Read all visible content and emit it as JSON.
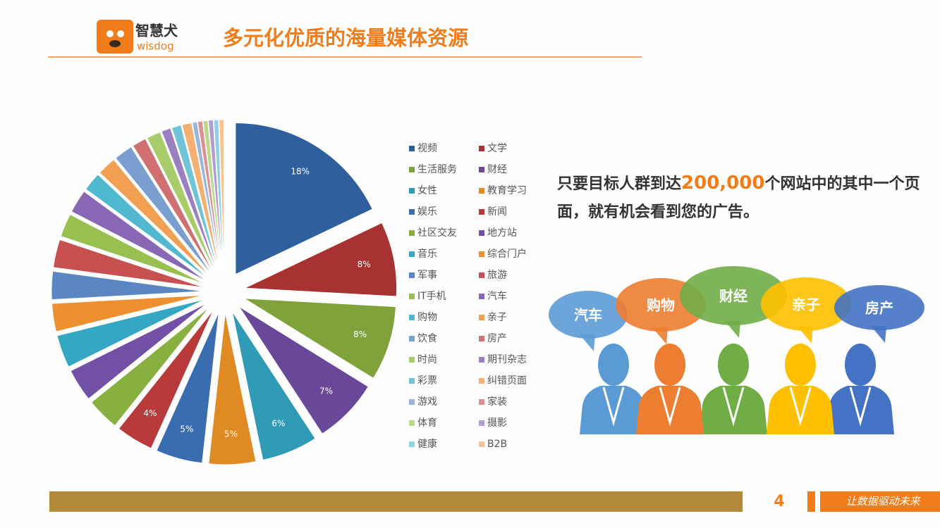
{
  "header": {
    "logo_cn": "智慧犬",
    "logo_en": "wisdog",
    "title": "多元化优质的海量媒体资源"
  },
  "chart_data": {
    "type": "pie",
    "categories": [
      "视频",
      "文学",
      "生活服务",
      "财经",
      "女性",
      "教育学习",
      "娱乐",
      "新闻",
      "社区交友",
      "地方站",
      "音乐",
      "综合门户",
      "军事",
      "旅游",
      "IT手机",
      "汽车",
      "购物",
      "亲子",
      "饮食",
      "房产",
      "时尚",
      "期刊杂志",
      "彩票",
      "纠错页面",
      "游戏",
      "家装",
      "体育",
      "摄影",
      "健康",
      "B2B"
    ],
    "values": [
      18,
      8,
      8,
      7,
      6,
      5,
      5,
      4,
      3.5,
      3.5,
      3.5,
      3,
      3,
      3,
      2.5,
      2.5,
      2,
      2,
      2,
      1.5,
      1.5,
      1,
      1,
      1,
      0.5,
      0.5,
      0.5,
      0.5,
      0.5,
      0.5
    ],
    "value_labels": [
      "18%",
      "8%",
      "8%",
      "7%",
      "6%",
      "5%",
      "5%",
      "4%",
      null,
      null,
      null,
      null,
      null,
      null,
      null,
      null,
      null,
      null,
      null,
      null,
      null,
      null,
      null,
      null,
      null,
      null,
      null,
      null,
      null,
      null
    ],
    "colors": [
      "#2f5f9e",
      "#a83232",
      "#7fa33a",
      "#69489a",
      "#2f9bb5",
      "#e08a24",
      "#3a6cb0",
      "#b83a3a",
      "#88b040",
      "#7250a5",
      "#34a8c2",
      "#ee9030",
      "#5a86c4",
      "#c85050",
      "#98c050",
      "#8868b5",
      "#50b8cf",
      "#f0a050",
      "#7a9ed0",
      "#d07070",
      "#a8cc6a",
      "#9a80c0",
      "#70c4d8",
      "#f4b070",
      "#9ab4dc",
      "#dc9090",
      "#bcd88a",
      "#b09cd0",
      "#90d0e0",
      "#f6c494"
    ],
    "legend": "right"
  },
  "text": {
    "before": "只要目标人群到达",
    "number": "200,000",
    "after": "个网站中的其中一个页面，就有机会看到您的广告。"
  },
  "illustration": {
    "labels": [
      "汽车",
      "购物",
      "财经",
      "亲子",
      "房产"
    ]
  },
  "footer": {
    "page": 4,
    "slogan": "让数据驱动未来"
  }
}
